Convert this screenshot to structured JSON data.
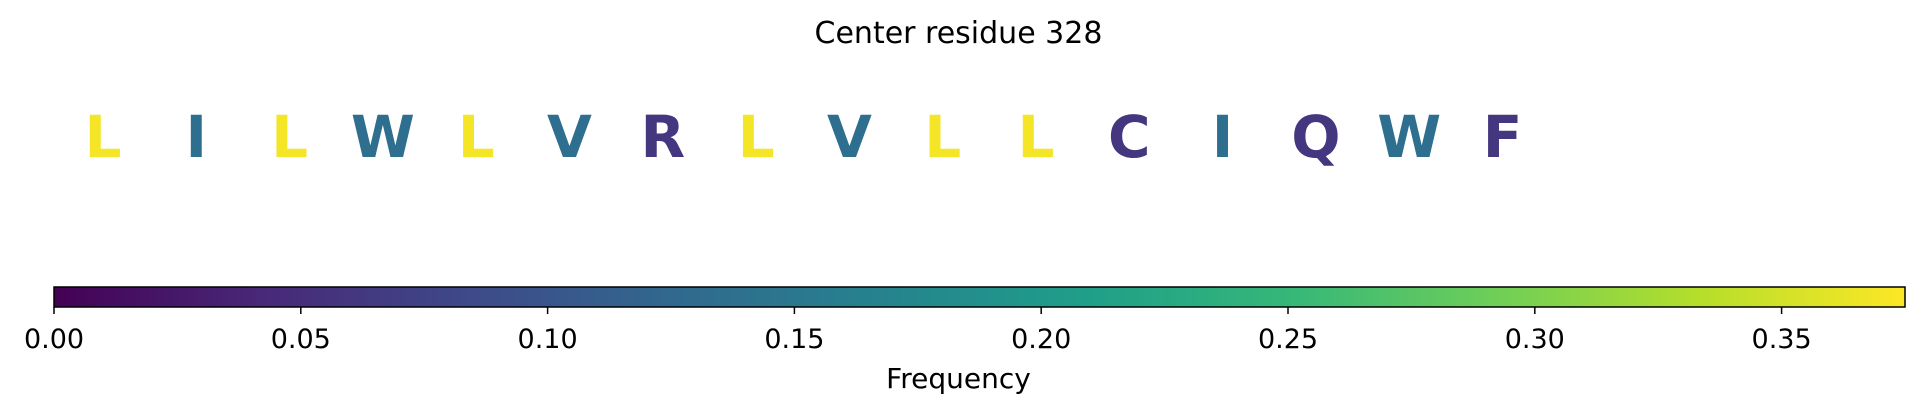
{
  "chart_data": {
    "type": "sequence-logo",
    "title": "Center residue 328",
    "residues": [
      {
        "letter": "L",
        "frequency": 0.37
      },
      {
        "letter": "I",
        "frequency": 0.135
      },
      {
        "letter": "L",
        "frequency": 0.37
      },
      {
        "letter": "W",
        "frequency": 0.135
      },
      {
        "letter": "L",
        "frequency": 0.37
      },
      {
        "letter": "V",
        "frequency": 0.135
      },
      {
        "letter": "R",
        "frequency": 0.06
      },
      {
        "letter": "L",
        "frequency": 0.37
      },
      {
        "letter": "V",
        "frequency": 0.135
      },
      {
        "letter": "L",
        "frequency": 0.37
      },
      {
        "letter": "L",
        "frequency": 0.37
      },
      {
        "letter": "C",
        "frequency": 0.06
      },
      {
        "letter": "I",
        "frequency": 0.135
      },
      {
        "letter": "Q",
        "frequency": 0.06
      },
      {
        "letter": "W",
        "frequency": 0.135
      },
      {
        "letter": "F",
        "frequency": 0.06
      }
    ],
    "colorbar": {
      "label": "Frequency",
      "range": [
        0.0,
        0.375
      ],
      "ticks": [
        0.0,
        0.05,
        0.1,
        0.15,
        0.2,
        0.25,
        0.3,
        0.35
      ],
      "tick_labels": [
        "0.00",
        "0.05",
        "0.10",
        "0.15",
        "0.20",
        "0.25",
        "0.30",
        "0.35"
      ],
      "colormap": "viridis",
      "colormap_stops": [
        "#440154",
        "#482878",
        "#3e4989",
        "#31688e",
        "#26828e",
        "#1f9e89",
        "#35b779",
        "#6ece58",
        "#b5de2b",
        "#fde725"
      ]
    }
  }
}
